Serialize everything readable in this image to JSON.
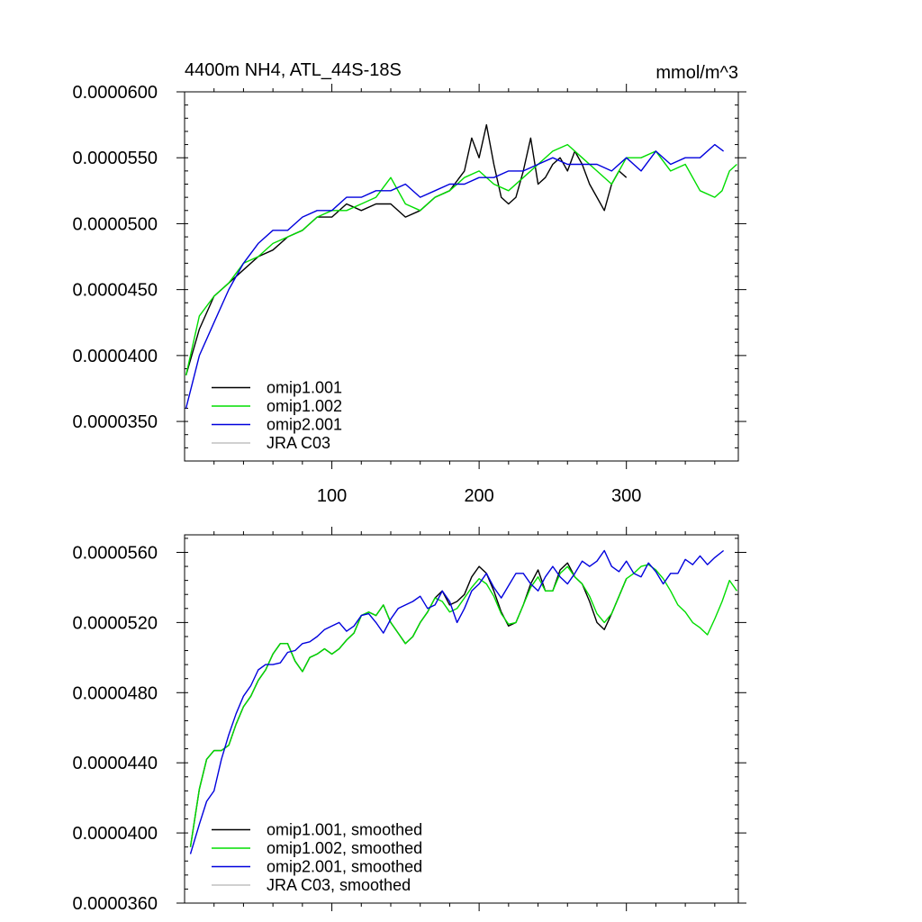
{
  "chart_data": [
    {
      "type": "line",
      "title": "4400m NH4, ATL_44S-18S",
      "units": "mmol/m^3",
      "xlim": [
        0,
        376
      ],
      "ylim": [
        3.2e-05,
        6e-05
      ],
      "x_ticks": [
        100,
        200,
        300
      ],
      "x_tick_labels": [
        "100",
        "200",
        "300"
      ],
      "y_ticks": [
        3.5e-05,
        4e-05,
        4.5e-05,
        5e-05,
        5.5e-05,
        6e-05
      ],
      "y_tick_labels": [
        "0.0000350",
        "0.0000400",
        "0.0000450",
        "0.0000500",
        "0.0000550",
        "0.0000600"
      ],
      "legend_position": "bottom-left",
      "series": [
        {
          "name": "omip1.001",
          "color": "#000000",
          "x": [
            1,
            10,
            20,
            30,
            40,
            50,
            60,
            70,
            80,
            90,
            100,
            110,
            120,
            130,
            140,
            150,
            160,
            170,
            180,
            190,
            195,
            200,
            205,
            210,
            215,
            220,
            225,
            230,
            235,
            240,
            245,
            250,
            255,
            260,
            265,
            270,
            275,
            280,
            285,
            290,
            295,
            300
          ],
          "y": [
            3.85e-05,
            4.2e-05,
            4.45e-05,
            4.55e-05,
            4.65e-05,
            4.75e-05,
            4.8e-05,
            4.9e-05,
            4.95e-05,
            5.05e-05,
            5.05e-05,
            5.15e-05,
            5.1e-05,
            5.15e-05,
            5.15e-05,
            5.05e-05,
            5.1e-05,
            5.2e-05,
            5.25e-05,
            5.4e-05,
            5.65e-05,
            5.5e-05,
            5.75e-05,
            5.45e-05,
            5.2e-05,
            5.15e-05,
            5.2e-05,
            5.4e-05,
            5.65e-05,
            5.3e-05,
            5.35e-05,
            5.45e-05,
            5.5e-05,
            5.4e-05,
            5.55e-05,
            5.45e-05,
            5.3e-05,
            5.2e-05,
            5.1e-05,
            5.3e-05,
            5.4e-05,
            5.35e-05
          ]
        },
        {
          "name": "omip1.002",
          "color": "#00dd00",
          "x": [
            1,
            10,
            20,
            30,
            40,
            50,
            60,
            70,
            80,
            90,
            100,
            110,
            120,
            130,
            140,
            150,
            160,
            170,
            180,
            190,
            200,
            210,
            220,
            230,
            240,
            250,
            260,
            270,
            280,
            290,
            300,
            310,
            320,
            330,
            340,
            350,
            360,
            365,
            370,
            375
          ],
          "y": [
            3.85e-05,
            4.3e-05,
            4.45e-05,
            4.55e-05,
            4.7e-05,
            4.75e-05,
            4.85e-05,
            4.9e-05,
            4.95e-05,
            5.05e-05,
            5.1e-05,
            5.1e-05,
            5.15e-05,
            5.2e-05,
            5.35e-05,
            5.15e-05,
            5.1e-05,
            5.2e-05,
            5.25e-05,
            5.35e-05,
            5.4e-05,
            5.3e-05,
            5.25e-05,
            5.35e-05,
            5.45e-05,
            5.55e-05,
            5.6e-05,
            5.5e-05,
            5.4e-05,
            5.3e-05,
            5.5e-05,
            5.5e-05,
            5.55e-05,
            5.4e-05,
            5.45e-05,
            5.25e-05,
            5.2e-05,
            5.25e-05,
            5.4e-05,
            5.45e-05
          ]
        },
        {
          "name": "omip2.001",
          "color": "#0000dd",
          "x": [
            1,
            10,
            20,
            30,
            40,
            50,
            60,
            70,
            80,
            90,
            100,
            110,
            120,
            130,
            140,
            150,
            160,
            170,
            180,
            190,
            200,
            210,
            220,
            230,
            240,
            250,
            260,
            270,
            280,
            290,
            300,
            310,
            320,
            330,
            340,
            350,
            360,
            366
          ],
          "y": [
            3.6e-05,
            4e-05,
            4.25e-05,
            4.5e-05,
            4.7e-05,
            4.85e-05,
            4.95e-05,
            4.95e-05,
            5.05e-05,
            5.1e-05,
            5.1e-05,
            5.2e-05,
            5.2e-05,
            5.25e-05,
            5.25e-05,
            5.3e-05,
            5.2e-05,
            5.25e-05,
            5.3e-05,
            5.3e-05,
            5.35e-05,
            5.35e-05,
            5.4e-05,
            5.4e-05,
            5.45e-05,
            5.5e-05,
            5.45e-05,
            5.45e-05,
            5.45e-05,
            5.4e-05,
            5.5e-05,
            5.4e-05,
            5.55e-05,
            5.45e-05,
            5.5e-05,
            5.5e-05,
            5.6e-05,
            5.55e-05
          ]
        },
        {
          "name": "JRA C03",
          "color": "#c0c0c0",
          "x": [],
          "y": []
        }
      ]
    },
    {
      "type": "line",
      "title": "",
      "xlim": [
        0,
        376
      ],
      "ylim": [
        3.6e-05,
        5.7e-05
      ],
      "x_ticks": [
        100,
        200,
        300
      ],
      "x_tick_labels": [
        "",
        "",
        ""
      ],
      "y_ticks": [
        3.6e-05,
        4e-05,
        4.4e-05,
        4.8e-05,
        5.2e-05,
        5.6e-05
      ],
      "y_tick_labels": [
        "0.0000360",
        "0.0000400",
        "0.0000440",
        "0.0000480",
        "0.0000520",
        "0.0000560"
      ],
      "legend_position": "bottom-left",
      "series": [
        {
          "name": "omip1.001, smoothed",
          "color": "#000000",
          "x": [
            4,
            10,
            15,
            20,
            25,
            30,
            35,
            40,
            45,
            50,
            55,
            60,
            65,
            70,
            75,
            80,
            85,
            90,
            95,
            100,
            105,
            110,
            115,
            120,
            125,
            130,
            135,
            140,
            145,
            150,
            155,
            160,
            165,
            170,
            175,
            180,
            185,
            190,
            195,
            200,
            205,
            210,
            215,
            220,
            225,
            230,
            235,
            240,
            245,
            250,
            255,
            260,
            265,
            270,
            275,
            280,
            285,
            290,
            295,
            300
          ],
          "y": [
            3.92e-05,
            4.25e-05,
            4.42e-05,
            4.47e-05,
            4.47e-05,
            4.5e-05,
            4.62e-05,
            4.72e-05,
            4.78e-05,
            4.87e-05,
            4.93e-05,
            5.02e-05,
            5.08e-05,
            5.08e-05,
            4.98e-05,
            4.92e-05,
            5e-05,
            5.02e-05,
            5.05e-05,
            5.02e-05,
            5.05e-05,
            5.1e-05,
            5.14e-05,
            5.24e-05,
            5.26e-05,
            5.24e-05,
            5.3e-05,
            5.2e-05,
            5.14e-05,
            5.08e-05,
            5.12e-05,
            5.2e-05,
            5.26e-05,
            5.34e-05,
            5.38e-05,
            5.3e-05,
            5.32e-05,
            5.36e-05,
            5.46e-05,
            5.52e-05,
            5.48e-05,
            5.38e-05,
            5.26e-05,
            5.18e-05,
            5.2e-05,
            5.3e-05,
            5.42e-05,
            5.5e-05,
            5.38e-05,
            5.38e-05,
            5.5e-05,
            5.54e-05,
            5.46e-05,
            5.42e-05,
            5.32e-05,
            5.2e-05,
            5.16e-05,
            5.25e-05,
            5.35e-05,
            5.45e-05
          ]
        },
        {
          "name": "omip1.002, smoothed",
          "color": "#00dd00",
          "x": [
            4,
            10,
            15,
            20,
            25,
            30,
            35,
            40,
            45,
            50,
            55,
            60,
            65,
            70,
            75,
            80,
            85,
            90,
            95,
            100,
            105,
            110,
            115,
            120,
            125,
            130,
            135,
            140,
            145,
            150,
            155,
            160,
            165,
            170,
            175,
            180,
            185,
            190,
            195,
            200,
            205,
            210,
            215,
            220,
            225,
            230,
            235,
            240,
            245,
            250,
            255,
            260,
            265,
            270,
            275,
            280,
            285,
            290,
            295,
            300,
            305,
            310,
            315,
            320,
            325,
            330,
            335,
            340,
            345,
            350,
            355,
            360,
            365,
            370,
            375
          ],
          "y": [
            3.92e-05,
            4.25e-05,
            4.42e-05,
            4.47e-05,
            4.47e-05,
            4.5e-05,
            4.62e-05,
            4.72e-05,
            4.78e-05,
            4.87e-05,
            4.93e-05,
            5.02e-05,
            5.08e-05,
            5.08e-05,
            4.98e-05,
            4.92e-05,
            5e-05,
            5.02e-05,
            5.05e-05,
            5.02e-05,
            5.05e-05,
            5.1e-05,
            5.14e-05,
            5.24e-05,
            5.26e-05,
            5.24e-05,
            5.3e-05,
            5.2e-05,
            5.14e-05,
            5.08e-05,
            5.12e-05,
            5.2e-05,
            5.26e-05,
            5.34e-05,
            5.32e-05,
            5.26e-05,
            5.28e-05,
            5.34e-05,
            5.4e-05,
            5.45e-05,
            5.42e-05,
            5.35e-05,
            5.25e-05,
            5.19e-05,
            5.2e-05,
            5.3e-05,
            5.4e-05,
            5.46e-05,
            5.38e-05,
            5.38e-05,
            5.48e-05,
            5.52e-05,
            5.46e-05,
            5.42e-05,
            5.35e-05,
            5.25e-05,
            5.2e-05,
            5.25e-05,
            5.35e-05,
            5.45e-05,
            5.48e-05,
            5.52e-05,
            5.53e-05,
            5.5e-05,
            5.45e-05,
            5.38e-05,
            5.3e-05,
            5.26e-05,
            5.2e-05,
            5.17e-05,
            5.13e-05,
            5.22e-05,
            5.32e-05,
            5.44e-05,
            5.38e-05
          ]
        },
        {
          "name": "omip2.001, smoothed",
          "color": "#0000dd",
          "x": [
            4,
            10,
            15,
            20,
            25,
            30,
            35,
            40,
            45,
            50,
            55,
            60,
            65,
            70,
            75,
            80,
            85,
            90,
            95,
            100,
            105,
            110,
            115,
            120,
            125,
            130,
            135,
            140,
            145,
            150,
            155,
            160,
            165,
            170,
            175,
            180,
            185,
            190,
            195,
            200,
            205,
            210,
            215,
            220,
            225,
            230,
            235,
            240,
            245,
            250,
            255,
            260,
            265,
            270,
            275,
            280,
            285,
            290,
            295,
            300,
            305,
            310,
            315,
            320,
            325,
            330,
            335,
            340,
            345,
            350,
            355,
            360,
            366
          ],
          "y": [
            3.88e-05,
            4.05e-05,
            4.18e-05,
            4.24e-05,
            4.42e-05,
            4.56e-05,
            4.68e-05,
            4.78e-05,
            4.84e-05,
            4.93e-05,
            4.96e-05,
            4.96e-05,
            4.97e-05,
            5.03e-05,
            5.04e-05,
            5.08e-05,
            5.09e-05,
            5.12e-05,
            5.16e-05,
            5.18e-05,
            5.2e-05,
            5.15e-05,
            5.18e-05,
            5.24e-05,
            5.25e-05,
            5.2e-05,
            5.14e-05,
            5.22e-05,
            5.28e-05,
            5.3e-05,
            5.32e-05,
            5.35e-05,
            5.28e-05,
            5.3e-05,
            5.38e-05,
            5.32e-05,
            5.2e-05,
            5.28e-05,
            5.38e-05,
            5.42e-05,
            5.48e-05,
            5.4e-05,
            5.34e-05,
            5.41e-05,
            5.48e-05,
            5.48e-05,
            5.42e-05,
            5.38e-05,
            5.46e-05,
            5.52e-05,
            5.46e-05,
            5.42e-05,
            5.48e-05,
            5.55e-05,
            5.52e-05,
            5.55e-05,
            5.61e-05,
            5.52e-05,
            5.49e-05,
            5.55e-05,
            5.48e-05,
            5.46e-05,
            5.54e-05,
            5.49e-05,
            5.42e-05,
            5.48e-05,
            5.48e-05,
            5.56e-05,
            5.53e-05,
            5.58e-05,
            5.53e-05,
            5.57e-05,
            5.61e-05
          ]
        },
        {
          "name": "JRA C03, smoothed",
          "color": "#c0c0c0",
          "x": [],
          "y": []
        }
      ]
    }
  ]
}
